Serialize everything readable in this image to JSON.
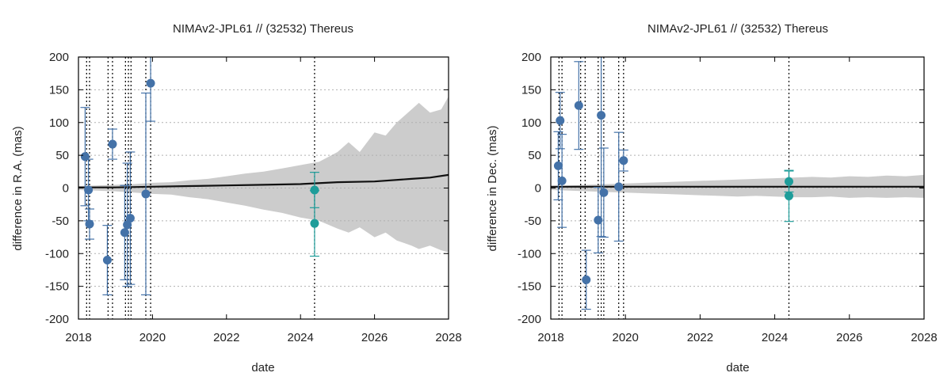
{
  "chart_data": [
    {
      "type": "scatter",
      "title": "NIMAv2-JPL61 // (32532) Thereus",
      "xlabel": "date",
      "ylabel": "difference in R.A. (mas)",
      "xlim": [
        2018,
        2028
      ],
      "ylim": [
        -200,
        200
      ],
      "xticks": [
        "2018",
        "2020",
        "2022",
        "2024",
        "2026",
        "2028"
      ],
      "yticks": [
        "-200",
        "-150",
        "-100",
        "-50",
        "0",
        "50",
        "100",
        "150",
        "200"
      ],
      "grid": "horizontal dotted",
      "uncertainty_band": {
        "x": [
          2018,
          2018.5,
          2019,
          2019.5,
          2020,
          2020.5,
          2021,
          2021.5,
          2022,
          2022.5,
          2023,
          2023.5,
          2024,
          2024.5,
          2025,
          2025.3,
          2025.6,
          2026,
          2026.3,
          2026.6,
          2027,
          2027.2,
          2027.5,
          2027.8,
          2028
        ],
        "upper": [
          3,
          4,
          5,
          6,
          8,
          9,
          12,
          14,
          18,
          22,
          25,
          30,
          35,
          40,
          55,
          70,
          55,
          85,
          80,
          100,
          120,
          130,
          115,
          120,
          140
        ],
        "lower": [
          -3,
          -4,
          -5,
          -7,
          -9,
          -10,
          -14,
          -17,
          -22,
          -27,
          -33,
          -38,
          -45,
          -50,
          -62,
          -68,
          -60,
          -75,
          -68,
          -80,
          -88,
          -93,
          -88,
          -95,
          -98
        ]
      },
      "nominal_line": {
        "x": [
          2018,
          2019,
          2020,
          2021,
          2022,
          2023,
          2024,
          2025,
          2026,
          2027,
          2027.5,
          2028
        ],
        "y": [
          1,
          1,
          2,
          3,
          4,
          5,
          6,
          9,
          10,
          14,
          16,
          20
        ]
      },
      "observation_dates": [
        2018.22,
        2018.3,
        2018.8,
        2018.92,
        2019.27,
        2019.35,
        2019.42,
        2019.82,
        2019.95,
        2024.38
      ],
      "series": [
        {
          "color": "#4472a8",
          "points": [
            {
              "x": 2018.18,
              "y": 48,
              "err": 75
            },
            {
              "x": 2018.27,
              "y": -3,
              "err": 47
            },
            {
              "x": 2018.3,
              "y": -55,
              "err": 23
            },
            {
              "x": 2018.78,
              "y": -110,
              "err": 53
            },
            {
              "x": 2018.92,
              "y": 67,
              "err": 23
            },
            {
              "x": 2019.25,
              "y": -68,
              "err": 72
            },
            {
              "x": 2019.32,
              "y": -56,
              "err": 94
            },
            {
              "x": 2019.4,
              "y": -46,
              "err": 101
            },
            {
              "x": 2019.82,
              "y": -9,
              "err": 154
            },
            {
              "x": 2019.95,
              "y": 160,
              "err": 58
            }
          ]
        },
        {
          "color": "#1e9d9a",
          "points": [
            {
              "x": 2024.38,
              "y": -3,
              "err": 27
            },
            {
              "x": 2024.38,
              "y": -54,
              "err": 50
            }
          ]
        }
      ]
    },
    {
      "type": "scatter",
      "title": "NIMAv2-JPL61 // (32532) Thereus",
      "xlabel": "date",
      "ylabel": "difference in Dec. (mas)",
      "xlim": [
        2018,
        2028
      ],
      "ylim": [
        -200,
        200
      ],
      "xticks": [
        "2018",
        "2020",
        "2022",
        "2024",
        "2026",
        "2028"
      ],
      "yticks": [
        "-200",
        "-150",
        "-100",
        "-50",
        "0",
        "50",
        "100",
        "150",
        "200"
      ],
      "grid": "horizontal dotted",
      "uncertainty_band": {
        "x": [
          2018,
          2018.5,
          2019,
          2019.5,
          2020,
          2020.5,
          2021,
          2021.5,
          2022,
          2022.5,
          2023,
          2023.5,
          2024,
          2024.5,
          2025,
          2025.5,
          2026,
          2026.5,
          2027,
          2027.5,
          2028
        ],
        "upper": [
          3,
          4,
          5,
          6,
          7,
          8,
          9,
          10,
          11,
          12,
          13,
          14,
          15,
          16,
          17,
          16,
          18,
          17,
          19,
          18,
          20
        ],
        "lower": [
          -3,
          -4,
          -5,
          -6,
          -7,
          -8,
          -9,
          -10,
          -11,
          -12,
          -13,
          -12,
          -13,
          -14,
          -14,
          -13,
          -15,
          -14,
          -15,
          -14,
          -15
        ]
      },
      "nominal_line": {
        "x": [
          2018,
          2020,
          2022,
          2024,
          2026,
          2028
        ],
        "y": [
          2,
          2,
          2,
          2,
          2,
          2
        ]
      },
      "observation_dates": [
        2018.22,
        2018.3,
        2018.8,
        2018.92,
        2019.27,
        2019.35,
        2019.42,
        2019.82,
        2019.95,
        2024.38
      ],
      "series": [
        {
          "color": "#4472a8",
          "points": [
            {
              "x": 2018.2,
              "y": 34,
              "err": 52
            },
            {
              "x": 2018.25,
              "y": 103,
              "err": 43
            },
            {
              "x": 2018.3,
              "y": 11,
              "err": 71
            },
            {
              "x": 2018.75,
              "y": 126,
              "err": 67
            },
            {
              "x": 2018.95,
              "y": -140,
              "err": 45
            },
            {
              "x": 2019.27,
              "y": -49,
              "err": 50
            },
            {
              "x": 2019.35,
              "y": 111,
              "err": 185
            },
            {
              "x": 2019.42,
              "y": -7,
              "err": 68
            },
            {
              "x": 2019.82,
              "y": 2,
              "err": 83
            },
            {
              "x": 2019.95,
              "y": 42,
              "err": 16
            }
          ]
        },
        {
          "color": "#1e9d9a",
          "points": [
            {
              "x": 2024.38,
              "y": 10,
              "err": 16
            },
            {
              "x": 2024.38,
              "y": -12,
              "err": 39
            }
          ]
        }
      ]
    }
  ]
}
